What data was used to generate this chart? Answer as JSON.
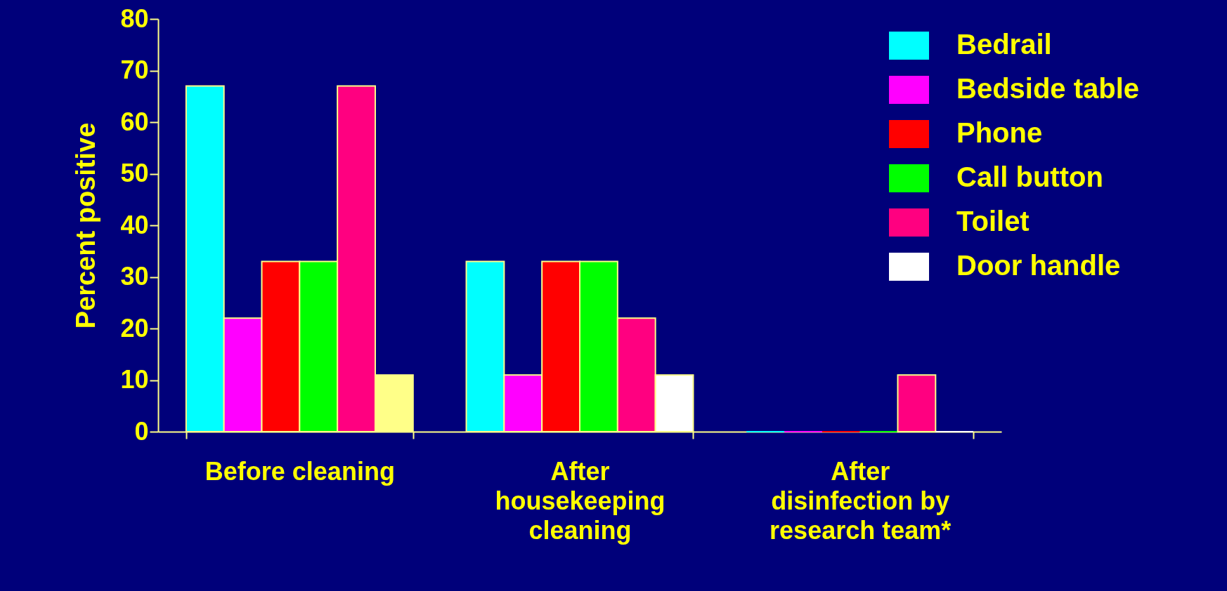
{
  "chart_data": {
    "type": "bar",
    "ylabel": "Percent positive",
    "categories": [
      "Before cleaning",
      "After housekeeping cleaning",
      "After disinfection by research team*"
    ],
    "series": [
      {
        "name": "Bedrail",
        "color": "#00ffff",
        "values": [
          67,
          33,
          0
        ]
      },
      {
        "name": "Bedside table",
        "color": "#ff00ff",
        "values": [
          22,
          11,
          0
        ]
      },
      {
        "name": "Phone",
        "color": "#ff0000",
        "values": [
          33,
          33,
          0
        ]
      },
      {
        "name": "Call button",
        "color": "#00ff00",
        "values": [
          33,
          33,
          0
        ]
      },
      {
        "name": "Toilet",
        "color": "#ff0080",
        "values": [
          67,
          22,
          11
        ]
      },
      {
        "name": "Door handle",
        "color": "#ffffff",
        "colors": [
          "#ffff88",
          "#ffffff",
          "#ffffff"
        ],
        "values": [
          11,
          11,
          0
        ]
      }
    ],
    "ylim": [
      0,
      80
    ],
    "yticks": [
      0,
      10,
      20,
      30,
      40,
      50,
      60,
      70,
      80
    ],
    "grid": false,
    "legend": "top right"
  }
}
